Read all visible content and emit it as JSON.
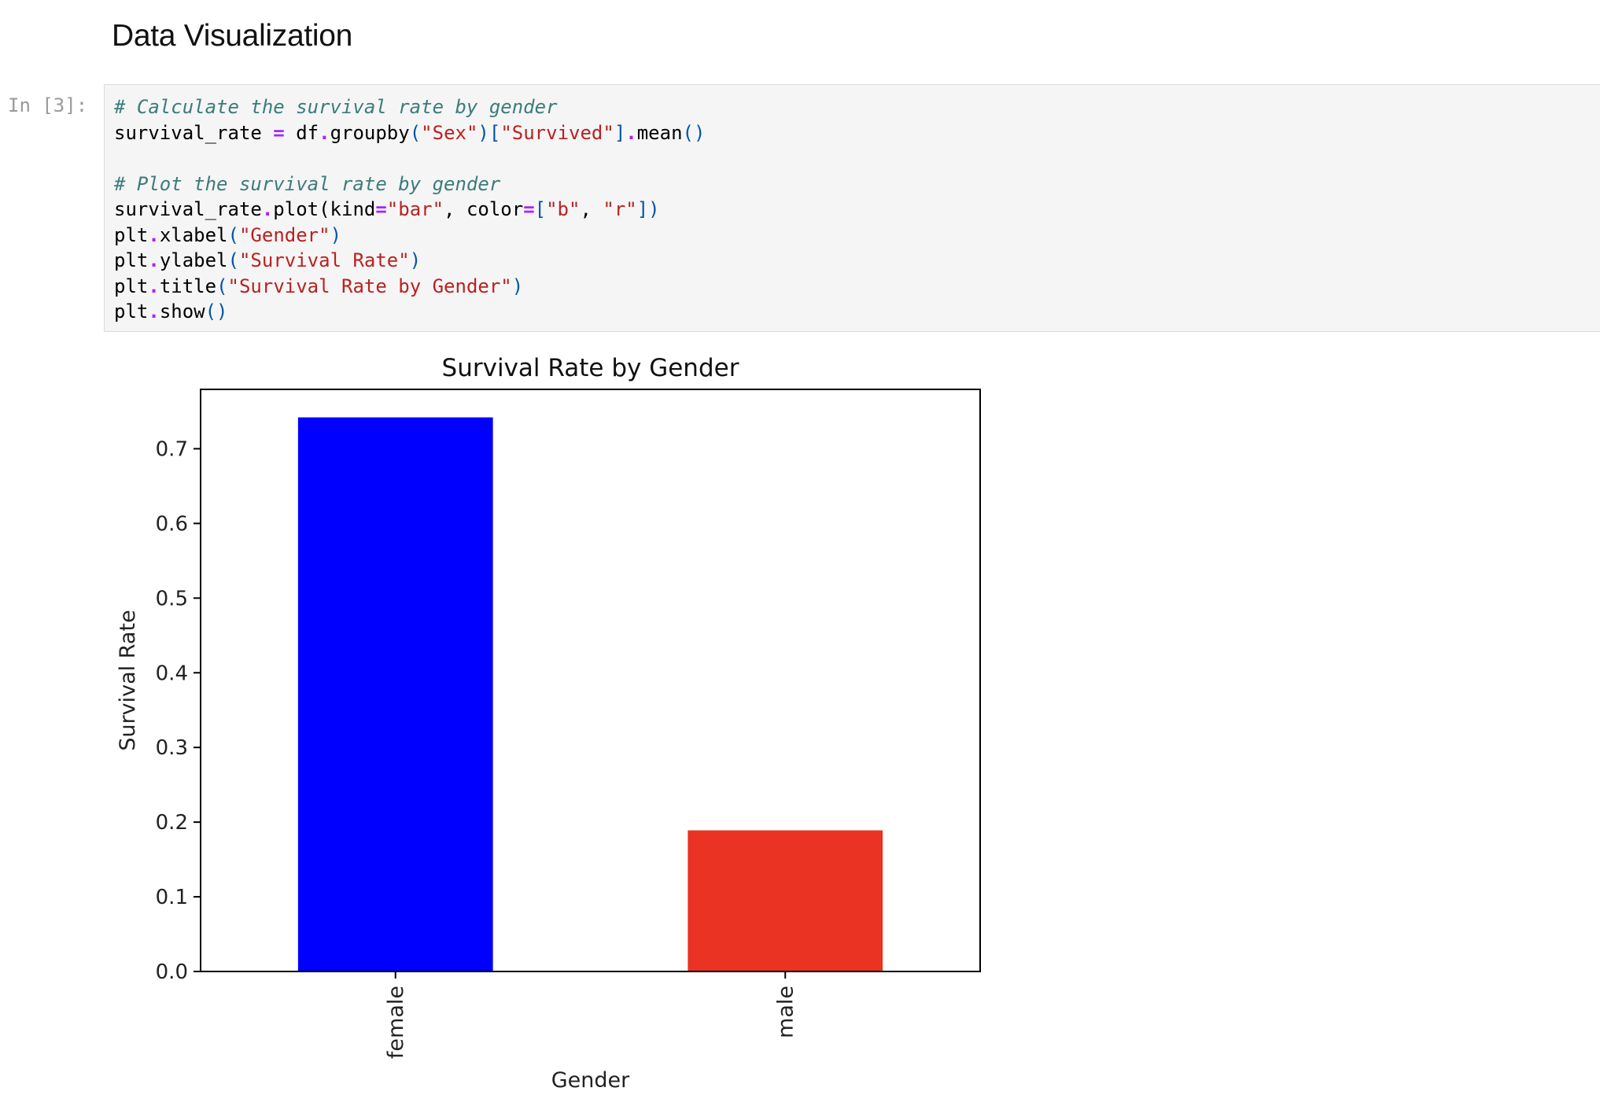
{
  "notebook": {
    "section_heading": "Data Visualization",
    "cell": {
      "prompt": "In [3]:",
      "code_lines": [
        [
          {
            "t": "# Calculate the survival rate by gender",
            "c": "comment"
          }
        ],
        [
          {
            "t": "survival_rate ",
            "c": "plain"
          },
          {
            "t": "=",
            "c": "op"
          },
          {
            "t": " df",
            "c": "plain"
          },
          {
            "t": ".",
            "c": "op"
          },
          {
            "t": "groupby",
            "c": "plain"
          },
          {
            "t": "(",
            "c": "par"
          },
          {
            "t": "\"Sex\"",
            "c": "str"
          },
          {
            "t": ")[",
            "c": "par"
          },
          {
            "t": "\"Survived\"",
            "c": "str"
          },
          {
            "t": "]",
            "c": "par"
          },
          {
            "t": ".",
            "c": "op"
          },
          {
            "t": "mean",
            "c": "plain"
          },
          {
            "t": "()",
            "c": "par"
          }
        ],
        [],
        [
          {
            "t": "# Plot the survival rate by gender",
            "c": "comment"
          }
        ],
        [
          {
            "t": "survival_rate",
            "c": "plain"
          },
          {
            "t": ".",
            "c": "op"
          },
          {
            "t": "plot(kind",
            "c": "plain"
          },
          {
            "t": "=",
            "c": "op"
          },
          {
            "t": "\"bar\"",
            "c": "str"
          },
          {
            "t": ", color",
            "c": "plain"
          },
          {
            "t": "=",
            "c": "op"
          },
          {
            "t": "[",
            "c": "par"
          },
          {
            "t": "\"b\"",
            "c": "str"
          },
          {
            "t": ", ",
            "c": "plain"
          },
          {
            "t": "\"r\"",
            "c": "str"
          },
          {
            "t": "])",
            "c": "par"
          }
        ],
        [
          {
            "t": "plt",
            "c": "plain"
          },
          {
            "t": ".",
            "c": "op"
          },
          {
            "t": "xlabel",
            "c": "plain"
          },
          {
            "t": "(",
            "c": "par"
          },
          {
            "t": "\"Gender\"",
            "c": "str"
          },
          {
            "t": ")",
            "c": "par"
          }
        ],
        [
          {
            "t": "plt",
            "c": "plain"
          },
          {
            "t": ".",
            "c": "op"
          },
          {
            "t": "ylabel",
            "c": "plain"
          },
          {
            "t": "(",
            "c": "par"
          },
          {
            "t": "\"Survival Rate\"",
            "c": "str"
          },
          {
            "t": ")",
            "c": "par"
          }
        ],
        [
          {
            "t": "plt",
            "c": "plain"
          },
          {
            "t": ".",
            "c": "op"
          },
          {
            "t": "title",
            "c": "plain"
          },
          {
            "t": "(",
            "c": "par"
          },
          {
            "t": "\"Survival Rate by Gender\"",
            "c": "str"
          },
          {
            "t": ")",
            "c": "par"
          }
        ],
        [
          {
            "t": "plt",
            "c": "plain"
          },
          {
            "t": ".",
            "c": "op"
          },
          {
            "t": "show",
            "c": "plain"
          },
          {
            "t": "()",
            "c": "par"
          }
        ]
      ]
    }
  },
  "chart_data": {
    "type": "bar",
    "title": "Survival Rate by Gender",
    "xlabel": "Gender",
    "ylabel": "Survival Rate",
    "categories": [
      "female",
      "male"
    ],
    "values": [
      0.742,
      0.189
    ],
    "colors": [
      "#0000ff",
      "#ea3323"
    ],
    "ylim": [
      0,
      0.7795
    ],
    "yticks": [
      "0.0",
      "0.1",
      "0.2",
      "0.3",
      "0.4",
      "0.5",
      "0.6",
      "0.7"
    ],
    "grid": false,
    "legend": "none"
  }
}
